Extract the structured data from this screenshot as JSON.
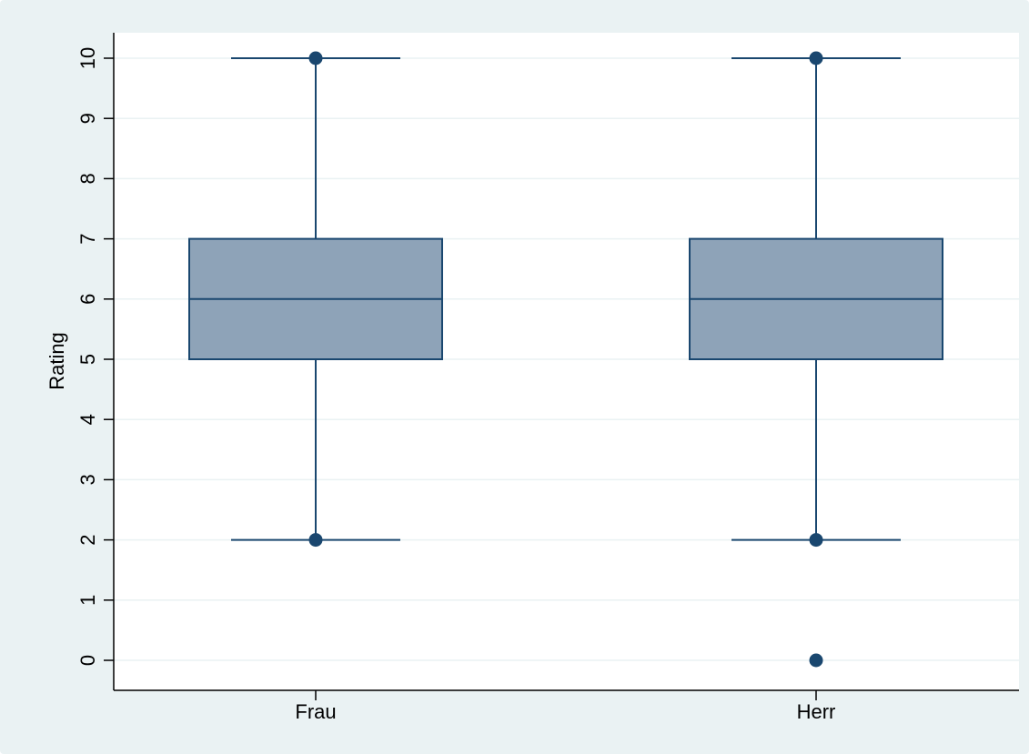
{
  "chart_data": {
    "type": "box",
    "title": "",
    "xlabel": "",
    "ylabel": "Rating",
    "categories": [
      "Frau",
      "Herr"
    ],
    "ylim": [
      0,
      10
    ],
    "yticks": [
      0,
      1,
      2,
      3,
      4,
      5,
      6,
      7,
      8,
      9,
      10
    ],
    "grid": true,
    "boxes": [
      {
        "category": "Frau",
        "whisker_low": 2,
        "q1": 5,
        "median": 6,
        "q3": 7,
        "whisker_high": 10,
        "points": [
          2,
          10
        ]
      },
      {
        "category": "Herr",
        "whisker_low": 2,
        "q1": 5,
        "median": 6,
        "q3": 7,
        "whisker_high": 10,
        "points": [
          0,
          2,
          10
        ]
      }
    ],
    "colors": {
      "box_fill": "#8ea3b8",
      "line": "#1a476f",
      "grid": "#eaf2f3",
      "plot_background": "#ffffff",
      "outer_background": "#eaf2f3"
    }
  }
}
